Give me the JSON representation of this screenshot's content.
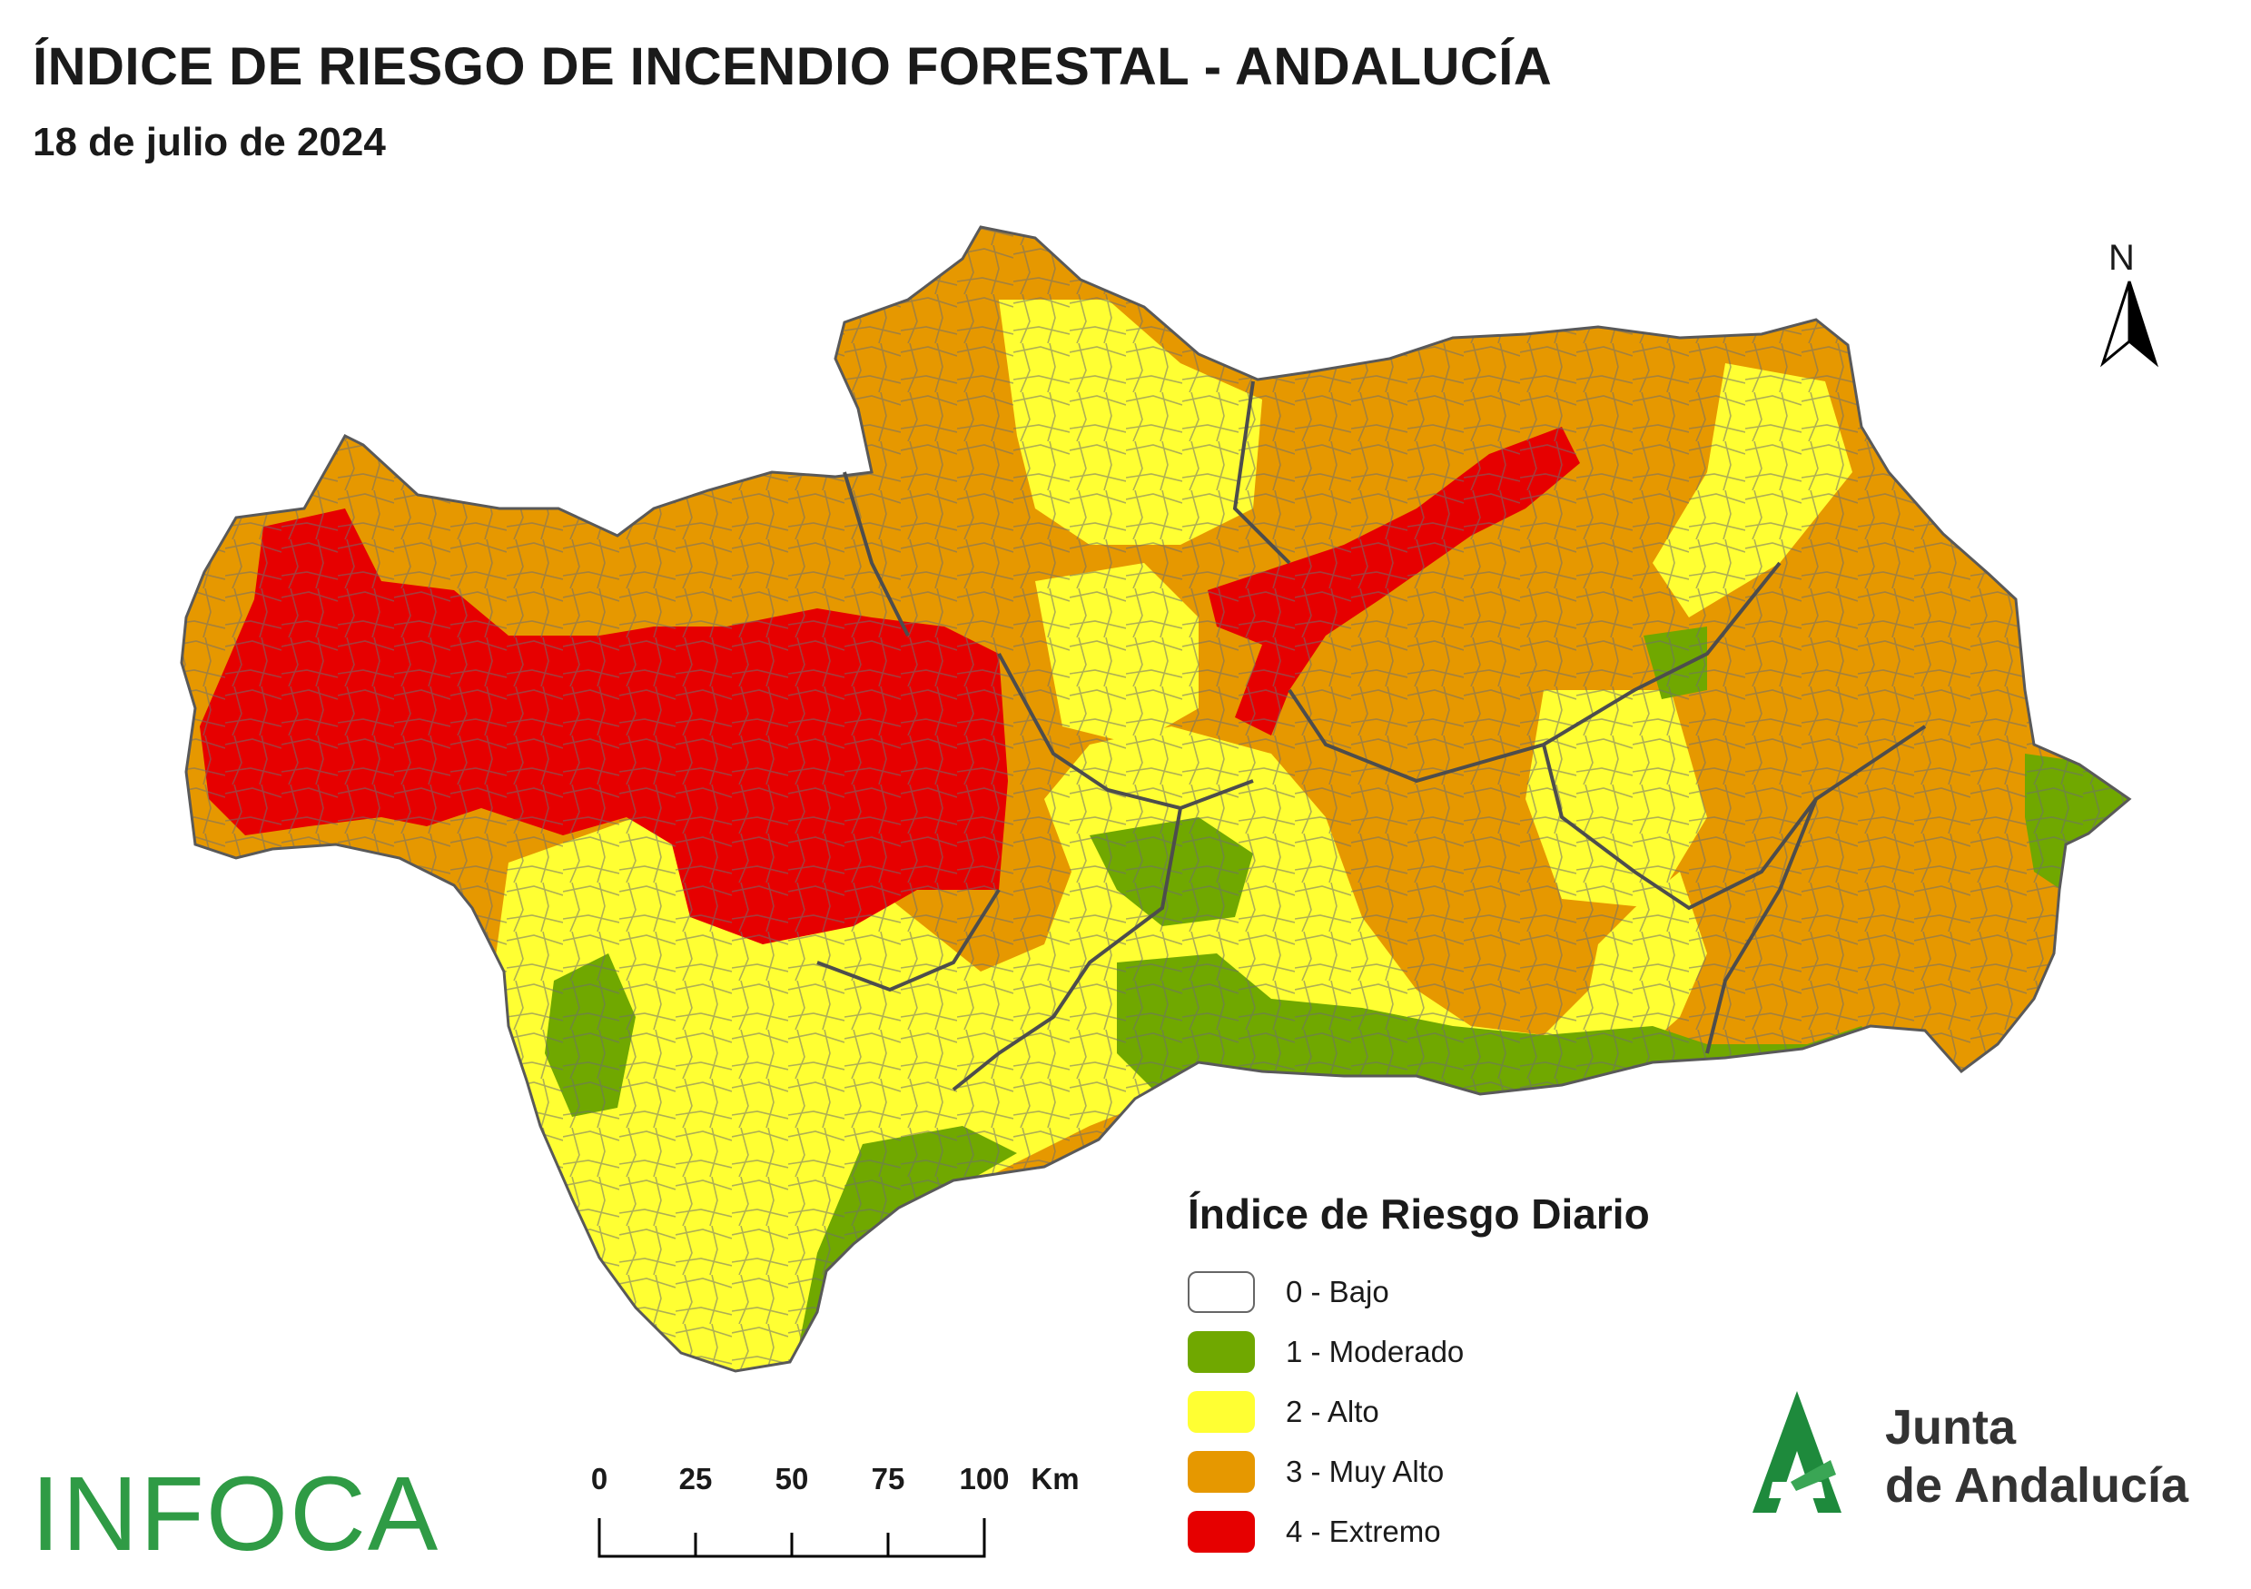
{
  "header": {
    "title": "ÍNDICE DE RIESGO DE INCENDIO FORESTAL - ANDALUCÍA",
    "date": "18 de julio de 2024"
  },
  "north_arrow": {
    "label": "N",
    "icon": "north-arrow-icon"
  },
  "legend": {
    "title": "Índice de Riesgo Diario",
    "items": [
      {
        "label": "0 - Bajo",
        "color": "#ffffff"
      },
      {
        "label": "1 - Moderado",
        "color": "#70a800"
      },
      {
        "label": "2 - Alto",
        "color": "#ffff33"
      },
      {
        "label": "3 - Muy Alto",
        "color": "#e69800"
      },
      {
        "label": "4 - Extremo",
        "color": "#e60000"
      }
    ]
  },
  "scale_bar": {
    "ticks": [
      "0",
      "25",
      "50",
      "75",
      "100"
    ],
    "unit": "Km"
  },
  "logos": {
    "infoca": "INFOCA",
    "junta_line1": "Junta",
    "junta_line2": "de Andalucía",
    "junta_color": "#1e8a3c"
  },
  "map_colors": {
    "boundary": "#595959",
    "background": "#ffffff"
  }
}
